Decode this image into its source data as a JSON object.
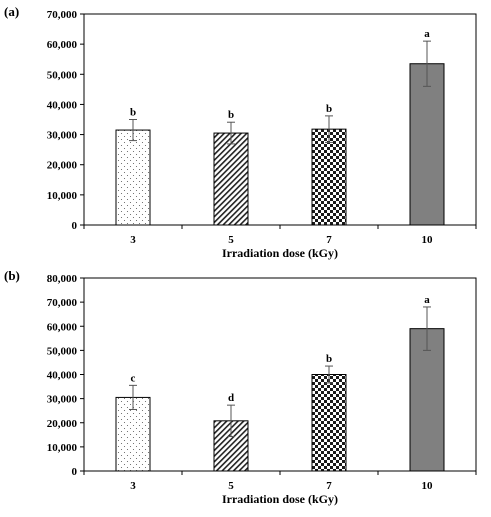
{
  "chart_data": [
    {
      "panel_label": "(a)",
      "type": "bar",
      "categories": [
        "3",
        "5",
        "7",
        "10"
      ],
      "values": [
        31500,
        30500,
        31800,
        53500
      ],
      "errors": [
        3500,
        3600,
        4400,
        7500
      ],
      "significance": [
        "b",
        "b",
        "b",
        "a"
      ],
      "patterns": [
        "dots",
        "diagonal",
        "checker",
        "solid"
      ],
      "xlabel": "Irradiation dose (kGy)",
      "ylabel": "",
      "ylim": [
        0,
        70000
      ],
      "yticks": [
        0,
        10000,
        20000,
        30000,
        40000,
        50000,
        60000,
        70000
      ],
      "ytick_labels": [
        "0",
        "10,000",
        "20,000",
        "30,000",
        "40,000",
        "50,000",
        "60,000",
        "70,000"
      ],
      "grid": false,
      "legend": "none",
      "colors": {
        "solid_bar": "#808080",
        "outline": "#000000"
      }
    },
    {
      "panel_label": "(b)",
      "type": "bar",
      "categories": [
        "3",
        "5",
        "7",
        "10"
      ],
      "values": [
        30500,
        20800,
        40000,
        59000
      ],
      "errors": [
        5000,
        6500,
        3500,
        9000
      ],
      "significance": [
        "c",
        "d",
        "b",
        "a"
      ],
      "patterns": [
        "dots",
        "diagonal",
        "checker",
        "solid"
      ],
      "xlabel": "Irradiation dose (kGy)",
      "ylabel": "",
      "ylim": [
        0,
        80000
      ],
      "yticks": [
        0,
        10000,
        20000,
        30000,
        40000,
        50000,
        60000,
        70000,
        80000
      ],
      "ytick_labels": [
        "0",
        "10,000",
        "20,000",
        "30,000",
        "40,000",
        "50,000",
        "60,000",
        "70,000",
        "80,000"
      ],
      "grid": false,
      "legend": "none",
      "colors": {
        "solid_bar": "#808080",
        "outline": "#000000"
      }
    }
  ]
}
